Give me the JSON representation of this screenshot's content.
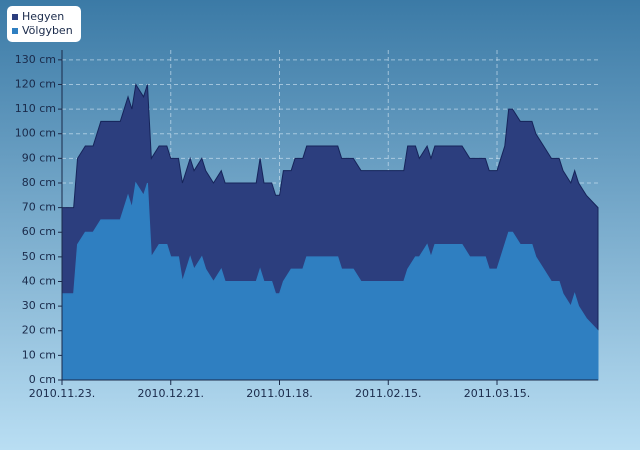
{
  "chart_data": {
    "type": "area",
    "x": [
      "2010-11-23",
      "2010-11-26",
      "2010-11-27",
      "2010-11-29",
      "2010-12-01",
      "2010-12-03",
      "2010-12-08",
      "2010-12-09",
      "2010-12-10",
      "2010-12-11",
      "2010-12-12",
      "2010-12-14",
      "2010-12-15",
      "2010-12-16",
      "2010-12-18",
      "2010-12-20",
      "2010-12-21",
      "2010-12-23",
      "2010-12-24",
      "2010-12-26",
      "2010-12-27",
      "2010-12-29",
      "2010-12-30",
      "2011-01-01",
      "2011-01-03",
      "2011-01-04",
      "2011-01-12",
      "2011-01-13",
      "2011-01-14",
      "2011-01-16",
      "2011-01-17",
      "2011-01-18",
      "2011-01-19",
      "2011-01-21",
      "2011-01-22",
      "2011-01-24",
      "2011-01-25",
      "2011-02-02",
      "2011-02-03",
      "2011-02-06",
      "2011-02-08",
      "2011-02-19",
      "2011-02-20",
      "2011-02-22",
      "2011-02-23",
      "2011-02-25",
      "2011-02-26",
      "2011-02-27",
      "2011-03-06",
      "2011-03-08",
      "2011-03-12",
      "2011-03-13",
      "2011-03-15",
      "2011-03-17",
      "2011-03-18",
      "2011-03-19",
      "2011-03-21",
      "2011-03-24",
      "2011-03-25",
      "2011-03-27",
      "2011-03-29",
      "2011-03-31",
      "2011-04-01",
      "2011-04-03",
      "2011-04-04",
      "2011-04-05",
      "2011-04-07",
      "2011-04-10"
    ],
    "series": [
      {
        "name": "Hegyen",
        "color": "#2c3e7e",
        "values": [
          70,
          70,
          90,
          95,
          95,
          105,
          105,
          110,
          115,
          110,
          120,
          115,
          120,
          90,
          95,
          95,
          90,
          90,
          80,
          90,
          85,
          90,
          85,
          80,
          85,
          80,
          80,
          90,
          80,
          80,
          75,
          75,
          85,
          85,
          90,
          90,
          95,
          95,
          90,
          90,
          85,
          85,
          95,
          95,
          90,
          95,
          90,
          95,
          95,
          90,
          90,
          85,
          85,
          95,
          110,
          110,
          105,
          105,
          100,
          95,
          90,
          90,
          85,
          80,
          85,
          80,
          75,
          70
        ]
      },
      {
        "name": "Völgyben",
        "color": "#2f7fc1",
        "values": [
          35,
          35,
          55,
          60,
          60,
          65,
          65,
          70,
          75,
          70,
          80,
          75,
          80,
          50,
          55,
          55,
          50,
          50,
          40,
          50,
          45,
          50,
          45,
          40,
          45,
          40,
          40,
          45,
          40,
          40,
          35,
          35,
          40,
          45,
          45,
          45,
          50,
          50,
          45,
          45,
          40,
          40,
          45,
          50,
          50,
          55,
          50,
          55,
          55,
          50,
          50,
          45,
          45,
          55,
          60,
          60,
          55,
          55,
          50,
          45,
          40,
          40,
          35,
          30,
          35,
          30,
          25,
          20
        ]
      }
    ],
    "xlim": [
      "2010-11-23",
      "2011-04-10"
    ],
    "xticks": [
      {
        "value": "2010-11-23",
        "label": "2010.11.23."
      },
      {
        "value": "2010-12-21",
        "label": "2010.12.21."
      },
      {
        "value": "2011-01-18",
        "label": "2011.01.18."
      },
      {
        "value": "2011-02-15",
        "label": "2011.02.15."
      },
      {
        "value": "2011-03-15",
        "label": "2011.03.15."
      }
    ],
    "ylim": [
      0,
      134
    ],
    "yticks": [
      {
        "value": 0,
        "label": "0 cm"
      },
      {
        "value": 10,
        "label": "10 cm"
      },
      {
        "value": 20,
        "label": "20 cm"
      },
      {
        "value": 30,
        "label": "30 cm"
      },
      {
        "value": 40,
        "label": "40 cm"
      },
      {
        "value": 50,
        "label": "50 cm"
      },
      {
        "value": 60,
        "label": "60 cm"
      },
      {
        "value": 70,
        "label": "70 cm"
      },
      {
        "value": 80,
        "label": "80 cm"
      },
      {
        "value": 90,
        "label": "90 cm"
      },
      {
        "value": 100,
        "label": "100 cm"
      },
      {
        "value": 110,
        "label": "110 cm"
      },
      {
        "value": 120,
        "label": "120 cm"
      },
      {
        "value": 130,
        "label": "130 cm"
      }
    ],
    "grid": true,
    "legend": "top-left"
  }
}
